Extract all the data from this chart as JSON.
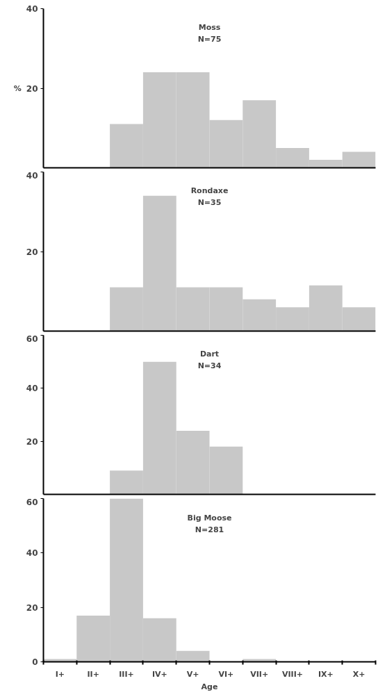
{
  "chart_data": [
    {
      "type": "bar",
      "title": "Moss",
      "subtitle": "N=75",
      "ylabel": "%",
      "categories": [
        null,
        null,
        null,
        null,
        null,
        null,
        null,
        null,
        null,
        null
      ],
      "values": [
        0,
        0,
        11,
        24,
        24,
        12,
        17,
        5,
        2,
        4
      ],
      "color": "#c8c8c8",
      "ylim": [
        0,
        40
      ],
      "yticks": [
        20,
        40
      ],
      "grid": false
    },
    {
      "type": "bar",
      "title": "Rondaxe",
      "subtitle": "N=35",
      "categories": [
        null,
        null,
        null,
        null,
        null,
        null,
        null,
        null,
        null,
        null
      ],
      "values": [
        0,
        0,
        11,
        34,
        11,
        11,
        8,
        6,
        11.5,
        6
      ],
      "color": "#c8c8c8",
      "ylim": [
        0,
        40
      ],
      "yticks": [
        20,
        40
      ],
      "grid": false
    },
    {
      "type": "bar",
      "title": "Dart",
      "subtitle": "N=34",
      "categories": [
        null,
        null,
        null,
        null,
        null,
        null,
        null,
        null,
        null,
        null
      ],
      "values": [
        0,
        0,
        9,
        50,
        24,
        18,
        0,
        0,
        0,
        0
      ],
      "color": "#c8c8c8",
      "ylim": [
        0,
        60
      ],
      "yticks": [
        20,
        40,
        60
      ],
      "grid": false
    },
    {
      "type": "bar",
      "title": "Big Moose",
      "subtitle": "N=281",
      "xlabel": "Age",
      "categories": [
        "I+",
        "II+",
        "III+",
        "IV+",
        "V+",
        "VI+",
        "VII+",
        "VIII+",
        "IX+",
        "X+"
      ],
      "values": [
        1,
        17,
        60,
        16,
        4,
        0,
        1,
        0,
        0,
        0
      ],
      "color": "#c8c8c8",
      "ylim": [
        0,
        60
      ],
      "yticks": [
        0,
        20,
        40,
        60
      ],
      "grid": false
    }
  ]
}
